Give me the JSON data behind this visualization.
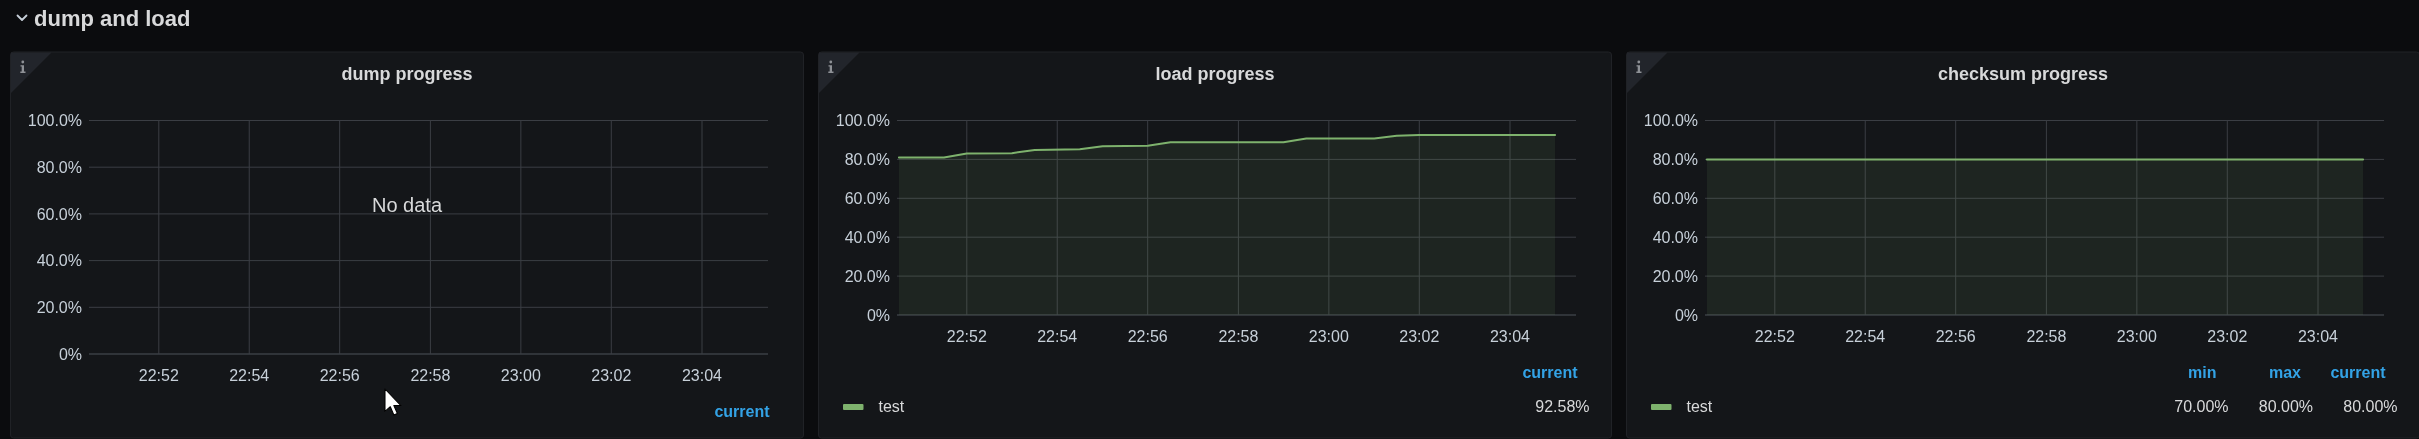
{
  "chart_data": [
    {
      "type": "other",
      "title": "dump and load"
    },
    {
      "type": "line",
      "title": "dump progress",
      "xlim": [
        22.841,
        23.091
      ],
      "xticks": [
        {
          "value": 22.8667,
          "label": "22:52"
        },
        {
          "value": 22.9,
          "label": "22:54"
        },
        {
          "value": 22.9333,
          "label": "22:56"
        },
        {
          "value": 22.9667,
          "label": "22:58"
        },
        {
          "value": 23,
          "label": "23:00"
        },
        {
          "value": 23.0333,
          "label": "23:02"
        },
        {
          "value": 23.0667,
          "label": "23:04"
        }
      ],
      "ylim": [
        0,
        100
      ],
      "yticks": [
        {
          "value": 0,
          "label": "0%"
        },
        {
          "value": 20,
          "label": "20.0%"
        },
        {
          "value": 40,
          "label": "40.0%"
        },
        {
          "value": 60,
          "label": "60.0%"
        },
        {
          "value": 80,
          "label": "80.0%"
        },
        {
          "value": 100,
          "label": "100.0%"
        }
      ],
      "grid": true,
      "annotations": [
        "No data",
        "current"
      ]
    },
    {
      "type": "area",
      "title": "load progress",
      "x": [
        22.8417,
        22.8583,
        22.8667,
        22.8833,
        22.8917,
        22.9083,
        22.9167,
        22.9333,
        22.9417,
        22.9833,
        22.9917,
        23.0167,
        23.025,
        23.0333,
        23.0833
      ],
      "xlim": [
        22.841,
        23.091
      ],
      "xticks": [
        {
          "value": 22.8667,
          "label": "22:52"
        },
        {
          "value": 22.9,
          "label": "22:54"
        },
        {
          "value": 22.9333,
          "label": "22:56"
        },
        {
          "value": 22.9667,
          "label": "22:58"
        },
        {
          "value": 23,
          "label": "23:00"
        },
        {
          "value": 23.0333,
          "label": "23:02"
        },
        {
          "value": 23.0667,
          "label": "23:04"
        }
      ],
      "ylim": [
        0,
        100
      ],
      "yticks": [
        {
          "value": 0,
          "label": "0%"
        },
        {
          "value": 20,
          "label": "20.0%"
        },
        {
          "value": 40,
          "label": "40.0%"
        },
        {
          "value": 60,
          "label": "60.0%"
        },
        {
          "value": 80,
          "label": "80.0%"
        },
        {
          "value": 100,
          "label": "100.0%"
        }
      ],
      "grid": true,
      "legend": "bottom",
      "series": [
        {
          "name": "test",
          "color": "#7eb26d",
          "values": [
            81,
            81,
            83,
            83.2,
            84.8,
            85.2,
            86.8,
            87,
            88.8,
            88.8,
            90.8,
            90.8,
            92.1,
            92.6,
            92.6
          ]
        }
      ],
      "annotations": [
        "current",
        "92.58%"
      ]
    },
    {
      "type": "area",
      "title": "checksum progress",
      "x": [
        22.8417,
        23.0833
      ],
      "xlim": [
        22.841,
        23.091
      ],
      "xticks": [
        {
          "value": 22.8667,
          "label": "22:52"
        },
        {
          "value": 22.9,
          "label": "22:54"
        },
        {
          "value": 22.9333,
          "label": "22:56"
        },
        {
          "value": 22.9667,
          "label": "22:58"
        },
        {
          "value": 23,
          "label": "23:00"
        },
        {
          "value": 23.0333,
          "label": "23:02"
        },
        {
          "value": 23.0667,
          "label": "23:04"
        }
      ],
      "ylim": [
        0,
        100
      ],
      "yticks": [
        {
          "value": 0,
          "label": "0%"
        },
        {
          "value": 20,
          "label": "20.0%"
        },
        {
          "value": 40,
          "label": "40.0%"
        },
        {
          "value": 60,
          "label": "60.0%"
        },
        {
          "value": 80,
          "label": "80.0%"
        },
        {
          "value": 100,
          "label": "100.0%"
        }
      ],
      "grid": true,
      "legend": "bottom",
      "series": [
        {
          "name": "test",
          "color": "#7eb26d",
          "values": [
            80,
            80
          ]
        }
      ],
      "annotations": [
        "min",
        "max",
        "current",
        "70.00%",
        "80.00%",
        "80.00%"
      ]
    }
  ]
}
